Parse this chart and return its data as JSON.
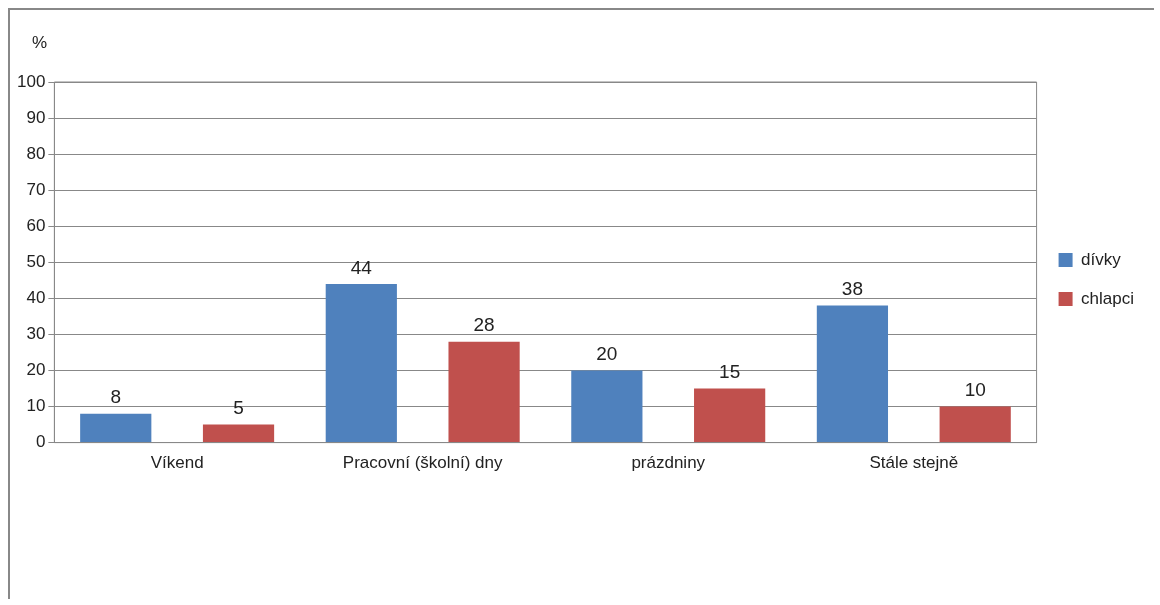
{
  "chart_data": {
    "type": "bar",
    "ylabel": "%",
    "categories": [
      "Víkend",
      "Pracovní (školní) dny",
      "prázdniny",
      "Stále stejně"
    ],
    "series": [
      {
        "name": "dívky",
        "color": "#4f81bd",
        "values": [
          8,
          44,
          20,
          38
        ]
      },
      {
        "name": "chlapci",
        "color": "#c0504d",
        "values": [
          5,
          28,
          15,
          10
        ]
      }
    ],
    "ylim": [
      0,
      100
    ],
    "yticks": [
      0,
      10,
      20,
      30,
      40,
      50,
      60,
      70,
      80,
      90,
      100
    ],
    "grid": "y",
    "legend": "right",
    "data_labels": true
  }
}
